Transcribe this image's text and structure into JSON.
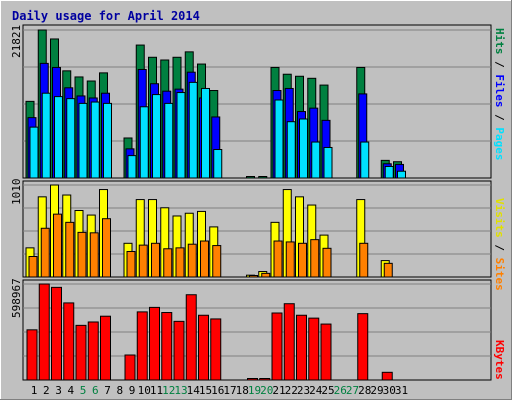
{
  "chart_data": {
    "type": "bar",
    "title": "Daily usage for April 2014",
    "categories": [
      "1",
      "2",
      "3",
      "4",
      "5",
      "6",
      "7",
      "8",
      "9",
      "10",
      "11",
      "12",
      "13",
      "14",
      "15",
      "16",
      "17",
      "18",
      "19",
      "20",
      "21",
      "22",
      "23",
      "24",
      "25",
      "26",
      "27",
      "28",
      "29",
      "30",
      "31"
    ],
    "weekend_days": [
      "5",
      "6",
      "12",
      "13",
      "19",
      "20",
      "26",
      "27"
    ],
    "panels": [
      {
        "id": "top",
        "max_label": "21821",
        "ymax": 21821,
        "series": [
          {
            "name": "Hits",
            "color": "#008040",
            "values": [
              11300,
              21821,
              20500,
              15800,
              14900,
              14300,
              15500,
              0,
              5900,
              19600,
              17800,
              17400,
              17800,
              18600,
              16800,
              12900,
              0,
              0,
              200,
              200,
              16300,
              15300,
              15000,
              14700,
              13700,
              0,
              0,
              16300,
              0,
              2600,
              2400
            ]
          },
          {
            "name": "Files",
            "color": "#0000ff",
            "values": [
              8900,
              16900,
              16300,
              13300,
              12100,
              11800,
              12500,
              0,
              4300,
              16000,
              13900,
              12800,
              13100,
              15600,
              11800,
              9000,
              0,
              0,
              0,
              0,
              12900,
              13200,
              9800,
              10300,
              8500,
              0,
              0,
              12400,
              0,
              2100,
              2000
            ]
          },
          {
            "name": "Pages",
            "color": "#00e0ff",
            "values": [
              7500,
              12500,
              12000,
              11700,
              11000,
              11200,
              11000,
              0,
              3300,
              10500,
              12300,
              11000,
              12600,
              14100,
              13200,
              4200,
              0,
              0,
              0,
              0,
              11500,
              8300,
              8700,
              5300,
              4500,
              0,
              0,
              5300,
              0,
              1700,
              1000
            ]
          }
        ]
      },
      {
        "id": "middle",
        "max_label": "1010",
        "ymax": 1010,
        "series": [
          {
            "name": "Visits",
            "color": "#ffff00",
            "values": [
              320,
              880,
              1010,
              900,
              730,
              680,
              960,
              0,
              370,
              850,
              850,
              760,
              670,
              700,
              720,
              550,
              0,
              0,
              20,
              60,
              600,
              960,
              880,
              790,
              460,
              0,
              0,
              850,
              0,
              180,
              0
            ]
          },
          {
            "name": "Sites",
            "color": "#ff8000",
            "values": [
              225,
              535,
              690,
              600,
              490,
              485,
              640,
              0,
              280,
              350,
              370,
              310,
              320,
              360,
              395,
              345,
              0,
              0,
              10,
              40,
              395,
              385,
              370,
              410,
              315,
              0,
              0,
              370,
              0,
              150,
              0
            ]
          }
        ]
      },
      {
        "id": "bottom",
        "max_label": "598967",
        "ymax": 598967,
        "series": [
          {
            "name": "KBytes",
            "color": "#ff0000",
            "values": [
              313000,
              598967,
              578000,
              481000,
              341000,
              362000,
              398000,
              0,
              156000,
              425000,
              453000,
              421000,
              366000,
              532000,
              404000,
              381000,
              0,
              0,
              4000,
              4000,
              418000,
              476000,
              404000,
              386000,
              349000,
              0,
              0,
              414000,
              0,
              48000,
              0
            ]
          }
        ]
      }
    ],
    "legend_top": [
      {
        "text": "Hits",
        "color": "#008040"
      },
      {
        "text": "/",
        "color": "#000000"
      },
      {
        "text": "Files",
        "color": "#0000ff"
      },
      {
        "text": "/",
        "color": "#000000"
      },
      {
        "text": "Pages",
        "color": "#00e0ff"
      }
    ],
    "legend_middle": [
      {
        "text": "Visits",
        "color": "#e0e000"
      },
      {
        "text": "/",
        "color": "#000000"
      },
      {
        "text": "Sites",
        "color": "#ff8000"
      }
    ],
    "legend_bottom": [
      {
        "text": "KBytes",
        "color": "#ff0000"
      }
    ]
  }
}
